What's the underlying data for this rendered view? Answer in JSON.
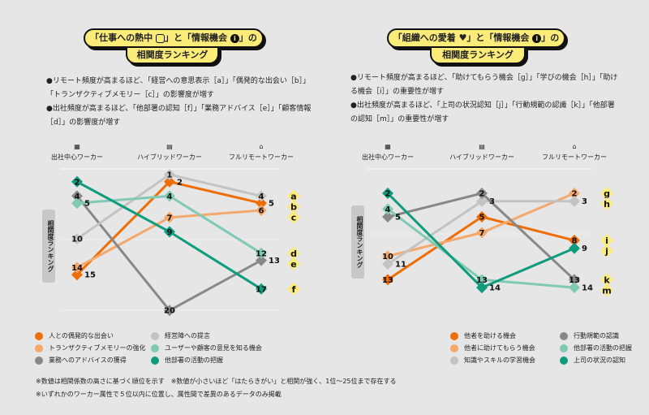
{
  "left": {
    "title_line1_a": "「仕事への熱中",
    "title_line1_b": "」と「情報機会",
    "title_line1_c": "」の",
    "title_line2": "相関度ランキング",
    "title_icons": [
      "fist-icon",
      "info-icon"
    ],
    "desc": [
      "●リモート頻度が高まるほど､「経営への意思表示［a］」「偶発的な出会い［b］」「トランザクティブメモリー［c］」の影響度が増す",
      "●出社頻度が高まるほど、「他部署の認知［f］」「業務アドバイス［e］」「顧客情報［d］」の影響度が増す"
    ]
  },
  "right": {
    "title_line1_a": "「組織への愛着",
    "title_line1_b": "」と「情報機会",
    "title_line1_c": "」の",
    "title_line2": "相関度ランキング",
    "title_icons": [
      "heart-icon",
      "info-icon"
    ],
    "desc": [
      "●リモート頻度が高まるほど､「助けてもらう機会［g］」「学びの機会［h］」「助ける機会［i］」の重要性が増す",
      "●出社頻度が高まるほど、「上司の状況認知［j］」「行動規範の認識［k］」「他部署の認知［m］」の重要性が増す"
    ]
  },
  "columns": [
    "出社中心ワーカー",
    "ハイブリッドワーカー",
    "フルリモートワーカー"
  ],
  "column_icons": [
    "building-icon",
    "briefcase-icon",
    "house-icon"
  ],
  "y_label": "相関度ランキング",
  "colors": {
    "background": "#e6e6e6",
    "label_yellow": "#fbec7a"
  },
  "chart_data": [
    {
      "type": "line",
      "categories": [
        "出社中心ワーカー",
        "ハイブリッドワーカー",
        "フルリモートワーカー"
      ],
      "ylabel": "相関度ランキング",
      "y_inverted": true,
      "series": [
        {
          "name": "人との偶発的な出会い",
          "color": "#ee6e05",
          "values": [
            15,
            2,
            5
          ],
          "tag": "b"
        },
        {
          "name": "トランザクティブメモリーの強化",
          "color": "#f5a86c",
          "values": [
            14,
            7,
            6
          ],
          "tag": "c"
        },
        {
          "name": "業務へのアドバイスの獲得",
          "color": "#888888",
          "values": [
            4,
            20,
            13
          ],
          "tag": "e"
        },
        {
          "name": "経営陣への提言",
          "color": "#c3c3c3",
          "values": [
            10,
            1,
            4
          ],
          "tag": "a"
        },
        {
          "name": "ユーザーや顧客の意見を知る機会",
          "color": "#80c9b4",
          "values": [
            5,
            4,
            12
          ],
          "tag": "d"
        },
        {
          "name": "他部署の活動の把握",
          "color": "#0f9c7d",
          "values": [
            2,
            9,
            17
          ],
          "tag": "f"
        }
      ]
    },
    {
      "type": "line",
      "categories": [
        "出社中心ワーカー",
        "ハイブリッドワーカー",
        "フルリモートワーカー"
      ],
      "ylabel": "相関度ランキング",
      "y_inverted": true,
      "series": [
        {
          "name": "他者を助ける機会",
          "color": "#ee6e05",
          "values": [
            13,
            5,
            8
          ],
          "tag": "i"
        },
        {
          "name": "他者に助けてもらう機会",
          "color": "#f5a86c",
          "values": [
            10,
            7,
            2
          ],
          "tag": "g"
        },
        {
          "name": "知識やスキルの学習機会",
          "color": "#c3c3c3",
          "values": [
            11,
            3,
            3
          ],
          "tag": "h"
        },
        {
          "name": "行動規範の認識",
          "color": "#888888",
          "values": [
            5,
            2,
            13
          ],
          "tag": "k"
        },
        {
          "name": "他部署の活動の把握",
          "color": "#80c9b4",
          "values": [
            4,
            13,
            14
          ],
          "tag": "m"
        },
        {
          "name": "上司の状況の認知",
          "color": "#0f9c7d",
          "values": [
            2,
            14,
            9
          ],
          "tag": "j"
        }
      ]
    }
  ],
  "notes": [
    "※数値は相関係数の高さに基づく順位を示す　※数値が小さいほど「はたらきがい」と相関が強く、1位〜25位まで存在する",
    "※いずれかのワーカー属性で５位以内に位置し、属性間で差異のあるデータのみ掲載"
  ]
}
